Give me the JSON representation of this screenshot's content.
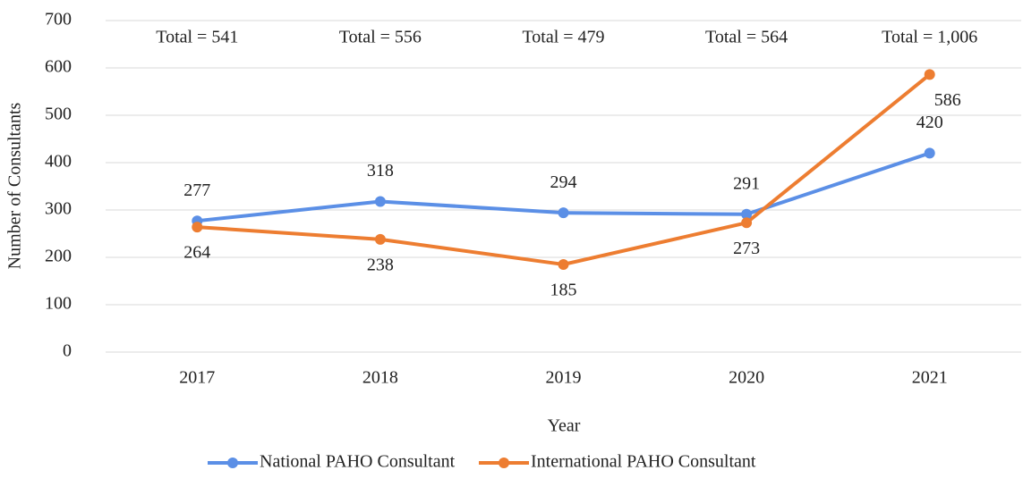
{
  "chart_data": {
    "type": "line",
    "categories": [
      "2017",
      "2018",
      "2019",
      "2020",
      "2021"
    ],
    "series": [
      {
        "name": "National PAHO Consultant",
        "color": "#5b8fe6",
        "values": [
          277,
          318,
          294,
          291,
          420
        ]
      },
      {
        "name": "International PAHO Consultant",
        "color": "#ed7d31",
        "values": [
          264,
          238,
          185,
          273,
          586
        ]
      }
    ],
    "annotations": [
      "Total = 541",
      "Total = 556",
      "Total = 479",
      "Total = 564",
      "Total = 1,006"
    ],
    "xlabel": "Year",
    "ylabel": "Number of Consultants",
    "ylim": [
      0,
      700
    ],
    "yticks": [
      0,
      100,
      200,
      300,
      400,
      500,
      600,
      700
    ],
    "grid": true,
    "legend": "bottom"
  }
}
